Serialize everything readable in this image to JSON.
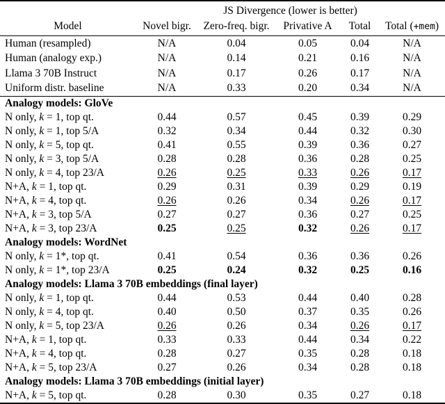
{
  "table": {
    "title": "JS Divergence (lower is better)",
    "model_header": "Model",
    "columns": [
      "Novel bigr.",
      "Zero-freq. bigr.",
      "Privative A",
      "Total",
      "Total (+mem)"
    ],
    "sections": [
      {
        "header": null,
        "rows": [
          {
            "label": "Human (resampled)",
            "cells": [
              {
                "v": "N/A"
              },
              {
                "v": "0.04"
              },
              {
                "v": "0.05"
              },
              {
                "v": "0.04"
              },
              {
                "v": "N/A"
              }
            ]
          },
          {
            "label": "Human (analogy exp.)",
            "cells": [
              {
                "v": "N/A"
              },
              {
                "v": "0.14"
              },
              {
                "v": "0.21"
              },
              {
                "v": "0.16"
              },
              {
                "v": "N/A"
              }
            ]
          },
          {
            "label": "Llama 3 70B Instruct",
            "cells": [
              {
                "v": "N/A"
              },
              {
                "v": "0.17"
              },
              {
                "v": "0.26"
              },
              {
                "v": "0.17"
              },
              {
                "v": "N/A"
              }
            ]
          },
          {
            "label": "Uniform distr. baseline",
            "cells": [
              {
                "v": "N/A"
              },
              {
                "v": "0.33"
              },
              {
                "v": "0.20"
              },
              {
                "v": "0.34"
              },
              {
                "v": "N/A"
              }
            ]
          }
        ]
      },
      {
        "header": "Analogy models: GloVe",
        "rows": [
          {
            "label": "N only, k = 1, top qt.",
            "cells": [
              {
                "v": "0.44"
              },
              {
                "v": "0.57"
              },
              {
                "v": "0.45"
              },
              {
                "v": "0.39"
              },
              {
                "v": "0.29"
              }
            ]
          },
          {
            "label": "N only, k = 1, top 5/A",
            "cells": [
              {
                "v": "0.32"
              },
              {
                "v": "0.34"
              },
              {
                "v": "0.44"
              },
              {
                "v": "0.32"
              },
              {
                "v": "0.30"
              }
            ]
          },
          {
            "label": "N only, k = 5, top qt.",
            "cells": [
              {
                "v": "0.41"
              },
              {
                "v": "0.55"
              },
              {
                "v": "0.39"
              },
              {
                "v": "0.36"
              },
              {
                "v": "0.27"
              }
            ]
          },
          {
            "label": "N only, k = 3, top 5/A",
            "cells": [
              {
                "v": "0.28"
              },
              {
                "v": "0.28"
              },
              {
                "v": "0.36"
              },
              {
                "v": "0.28"
              },
              {
                "v": "0.25"
              }
            ]
          },
          {
            "label": "N only, k = 4, top 23/A",
            "cells": [
              {
                "v": "0.26",
                "s": "u"
              },
              {
                "v": "0.25",
                "s": "u"
              },
              {
                "v": "0.33",
                "s": "u"
              },
              {
                "v": "0.26",
                "s": "u"
              },
              {
                "v": "0.17",
                "s": "u"
              }
            ]
          },
          {
            "label": "N+A, k = 1, top qt.",
            "cells": [
              {
                "v": "0.29"
              },
              {
                "v": "0.31"
              },
              {
                "v": "0.39"
              },
              {
                "v": "0.29"
              },
              {
                "v": "0.19"
              }
            ]
          },
          {
            "label": "N+A, k = 4, top qt.",
            "cells": [
              {
                "v": "0.26",
                "s": "u"
              },
              {
                "v": "0.26"
              },
              {
                "v": "0.34"
              },
              {
                "v": "0.26",
                "s": "u"
              },
              {
                "v": "0.17",
                "s": "u"
              }
            ]
          },
          {
            "label": "N+A, k = 3, top 5/A",
            "cells": [
              {
                "v": "0.27"
              },
              {
                "v": "0.27"
              },
              {
                "v": "0.36"
              },
              {
                "v": "0.27"
              },
              {
                "v": "0.25"
              }
            ]
          },
          {
            "label": "N+A, k = 3, top 23/A",
            "cells": [
              {
                "v": "0.25",
                "s": "b"
              },
              {
                "v": "0.25",
                "s": "u"
              },
              {
                "v": "0.32",
                "s": "b"
              },
              {
                "v": "0.26",
                "s": "u"
              },
              {
                "v": "0.17",
                "s": "u"
              }
            ]
          }
        ]
      },
      {
        "header": "Analogy models: WordNet",
        "rows": [
          {
            "label": "N only, k = 1*, top qt.",
            "cells": [
              {
                "v": "0.41"
              },
              {
                "v": "0.54"
              },
              {
                "v": "0.36"
              },
              {
                "v": "0.36"
              },
              {
                "v": "0.26"
              }
            ]
          },
          {
            "label": "N only, k = 1*, top 23/A",
            "cells": [
              {
                "v": "0.25",
                "s": "b"
              },
              {
                "v": "0.24",
                "s": "b"
              },
              {
                "v": "0.32",
                "s": "b"
              },
              {
                "v": "0.25",
                "s": "b"
              },
              {
                "v": "0.16",
                "s": "b"
              }
            ]
          }
        ]
      },
      {
        "header": "Analogy models: Llama 3 70B embeddings (final layer)",
        "rows": [
          {
            "label": "N only, k = 1, top qt.",
            "cells": [
              {
                "v": "0.44"
              },
              {
                "v": "0.53"
              },
              {
                "v": "0.44"
              },
              {
                "v": "0.40"
              },
              {
                "v": "0.28"
              }
            ]
          },
          {
            "label": "N only, k = 4, top qt.",
            "cells": [
              {
                "v": "0.40"
              },
              {
                "v": "0.50"
              },
              {
                "v": "0.37"
              },
              {
                "v": "0.35"
              },
              {
                "v": "0.26"
              }
            ]
          },
          {
            "label": "N only, k = 5, top 23/A",
            "cells": [
              {
                "v": "0.26",
                "s": "u"
              },
              {
                "v": "0.26"
              },
              {
                "v": "0.34"
              },
              {
                "v": "0.26",
                "s": "u"
              },
              {
                "v": "0.17",
                "s": "u"
              }
            ]
          },
          {
            "label": "N+A, k = 1, top qt.",
            "cells": [
              {
                "v": "0.33"
              },
              {
                "v": "0.33"
              },
              {
                "v": "0.44"
              },
              {
                "v": "0.34"
              },
              {
                "v": "0.22"
              }
            ]
          },
          {
            "label": "N+A, k = 4, top qt.",
            "cells": [
              {
                "v": "0.28"
              },
              {
                "v": "0.27"
              },
              {
                "v": "0.35"
              },
              {
                "v": "0.28"
              },
              {
                "v": "0.18"
              }
            ]
          },
          {
            "label": "N+A, k = 5, top 23/A",
            "cells": [
              {
                "v": "0.27"
              },
              {
                "v": "0.26"
              },
              {
                "v": "0.34"
              },
              {
                "v": "0.28"
              },
              {
                "v": "0.18"
              }
            ]
          }
        ]
      },
      {
        "header": "Analogy models: Llama 3 70B embeddings (initial layer)",
        "rows": [
          {
            "label": "N+A, k = 5, top qt.",
            "cells": [
              {
                "v": "0.28"
              },
              {
                "v": "0.30"
              },
              {
                "v": "0.35"
              },
              {
                "v": "0.27"
              },
              {
                "v": "0.18"
              }
            ]
          }
        ]
      }
    ]
  }
}
